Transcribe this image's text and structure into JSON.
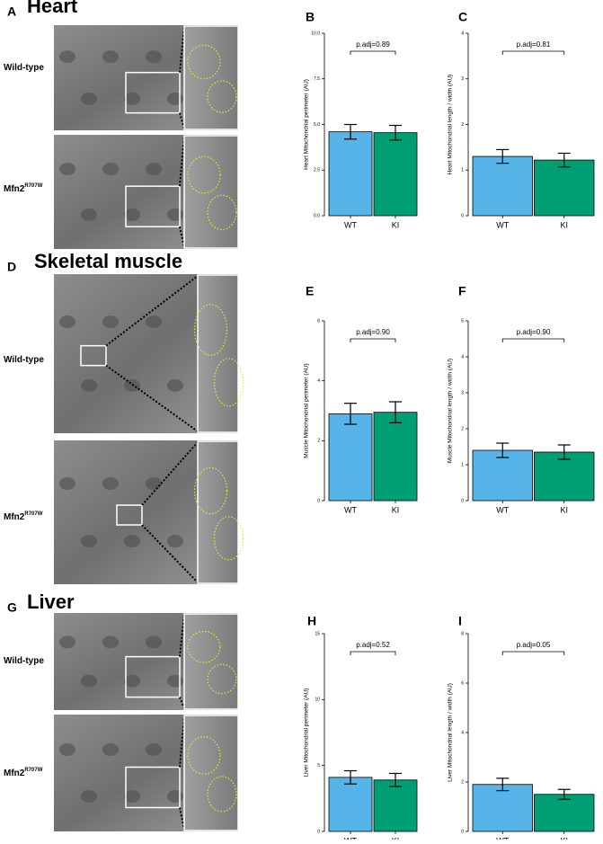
{
  "figure": {
    "sections": [
      {
        "letter": "A",
        "title": "Heart",
        "row_labels": [
          "Wild-type",
          "Mfn2"
        ],
        "superscript": "R707W"
      },
      {
        "letter": "D",
        "title": "Skeletal muscle",
        "row_labels": [
          "Wild-type",
          "Mfn2"
        ],
        "superscript": "R707W"
      },
      {
        "letter": "G",
        "title": "Liver",
        "row_labels": [
          "Wild-type",
          "Mfn2"
        ],
        "superscript": "R707W"
      }
    ]
  },
  "chart_data": [
    {
      "type": "bar",
      "panel": "B",
      "y_label": "Heart Mitochondrial perimeter (AU)",
      "categories": [
        "WT",
        "KI"
      ],
      "values": [
        4.6,
        4.55
      ],
      "errors": [
        0.4,
        0.4
      ],
      "colors": [
        "#56b4e9",
        "#009e73"
      ],
      "annotation": "p.adj=0.89",
      "ylim": [
        0,
        10
      ],
      "yticks": [
        {
          "value": 0,
          "label": "0.0"
        },
        {
          "value": 2.5,
          "label": "2.5"
        },
        {
          "value": 5,
          "label": "5.0"
        },
        {
          "value": 7.5,
          "label": "7.5"
        },
        {
          "value": 10,
          "label": "10.0"
        }
      ]
    },
    {
      "type": "bar",
      "panel": "C",
      "y_label": "Heart Mitochondrial length / width (AU)",
      "categories": [
        "WT",
        "KI"
      ],
      "values": [
        1.3,
        1.22
      ],
      "errors": [
        0.15,
        0.15
      ],
      "colors": [
        "#56b4e9",
        "#009e73"
      ],
      "annotation": "p.adj=0.81",
      "ylim": [
        0,
        4
      ],
      "yticks": [
        0,
        1,
        2,
        3,
        4
      ]
    },
    {
      "type": "bar",
      "panel": "E",
      "y_label": "Muscle Mitochondrial perimeter (AU)",
      "categories": [
        "WT",
        "KI"
      ],
      "values": [
        2.9,
        2.95
      ],
      "errors": [
        0.35,
        0.35
      ],
      "colors": [
        "#56b4e9",
        "#009e73"
      ],
      "annotation": "p.adj=0.90",
      "ylim": [
        0,
        6
      ],
      "yticks": [
        0,
        2,
        4,
        6
      ]
    },
    {
      "type": "bar",
      "panel": "F",
      "y_label": "Muscle Mitochondrial length / width (AU)",
      "categories": [
        "WT",
        "KI"
      ],
      "values": [
        1.4,
        1.35
      ],
      "errors": [
        0.2,
        0.2
      ],
      "colors": [
        "#56b4e9",
        "#009e73"
      ],
      "annotation": "p.adj=0.90",
      "ylim": [
        0,
        5
      ],
      "yticks": [
        0,
        1,
        2,
        3,
        4,
        5
      ]
    },
    {
      "type": "bar",
      "panel": "H",
      "y_label": "Liver Mitochondrial perimeter (AU)",
      "categories": [
        "WT",
        "KI"
      ],
      "values": [
        4.1,
        3.9
      ],
      "errors": [
        0.5,
        0.5
      ],
      "colors": [
        "#56b4e9",
        "#009e73"
      ],
      "annotation": "p.adj=0.52",
      "ylim": [
        0,
        15
      ],
      "yticks": [
        0,
        5,
        10,
        15
      ]
    },
    {
      "type": "bar",
      "panel": "I",
      "y_label": "Liver Mitochondrial length / width (AU)",
      "categories": [
        "WT",
        "KI"
      ],
      "values": [
        1.9,
        1.5
      ],
      "errors": [
        0.25,
        0.2
      ],
      "colors": [
        "#56b4e9",
        "#009e73"
      ],
      "annotation": "p.adj=0.05",
      "ylim": [
        0,
        8
      ],
      "yticks": [
        0,
        2,
        4,
        6,
        8
      ]
    }
  ]
}
